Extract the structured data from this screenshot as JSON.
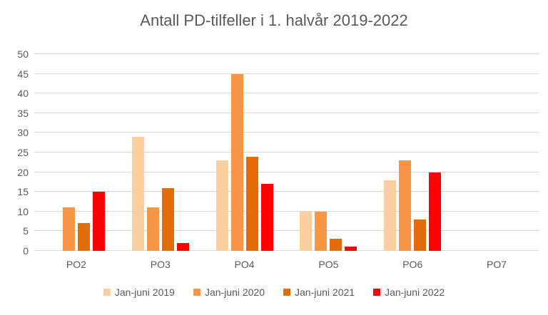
{
  "chart_data": {
    "type": "bar",
    "title": "Antall PD-tilfeller i 1. halvår 2019-2022",
    "categories": [
      "PO2",
      "PO3",
      "PO4",
      "PO5",
      "PO6",
      "PO7"
    ],
    "series": [
      {
        "name": "Jan-juni 2019",
        "color": "#FBCF9E",
        "values": [
          0,
          29,
          23,
          10,
          18,
          0
        ]
      },
      {
        "name": "Jan-juni 2020",
        "color": "#F79646",
        "values": [
          11,
          11,
          45,
          10,
          23,
          0
        ]
      },
      {
        "name": "Jan-juni 2021",
        "color": "#E36C09",
        "values": [
          7,
          16,
          24,
          3,
          8,
          0
        ]
      },
      {
        "name": "Jan-juni 2022",
        "color": "#FF0000",
        "values": [
          15,
          2,
          17,
          1,
          20,
          0
        ]
      }
    ],
    "ylim": [
      0,
      50
    ],
    "yticks": [
      0,
      5,
      10,
      15,
      20,
      25,
      30,
      35,
      40,
      45,
      50
    ],
    "xlabel": "",
    "ylabel": "",
    "grid": "horizontal",
    "legend_position": "bottom"
  },
  "styles": {
    "text_color": "#595959",
    "gridline_color": "#D9D9D9",
    "background": "#FFFFFF"
  }
}
